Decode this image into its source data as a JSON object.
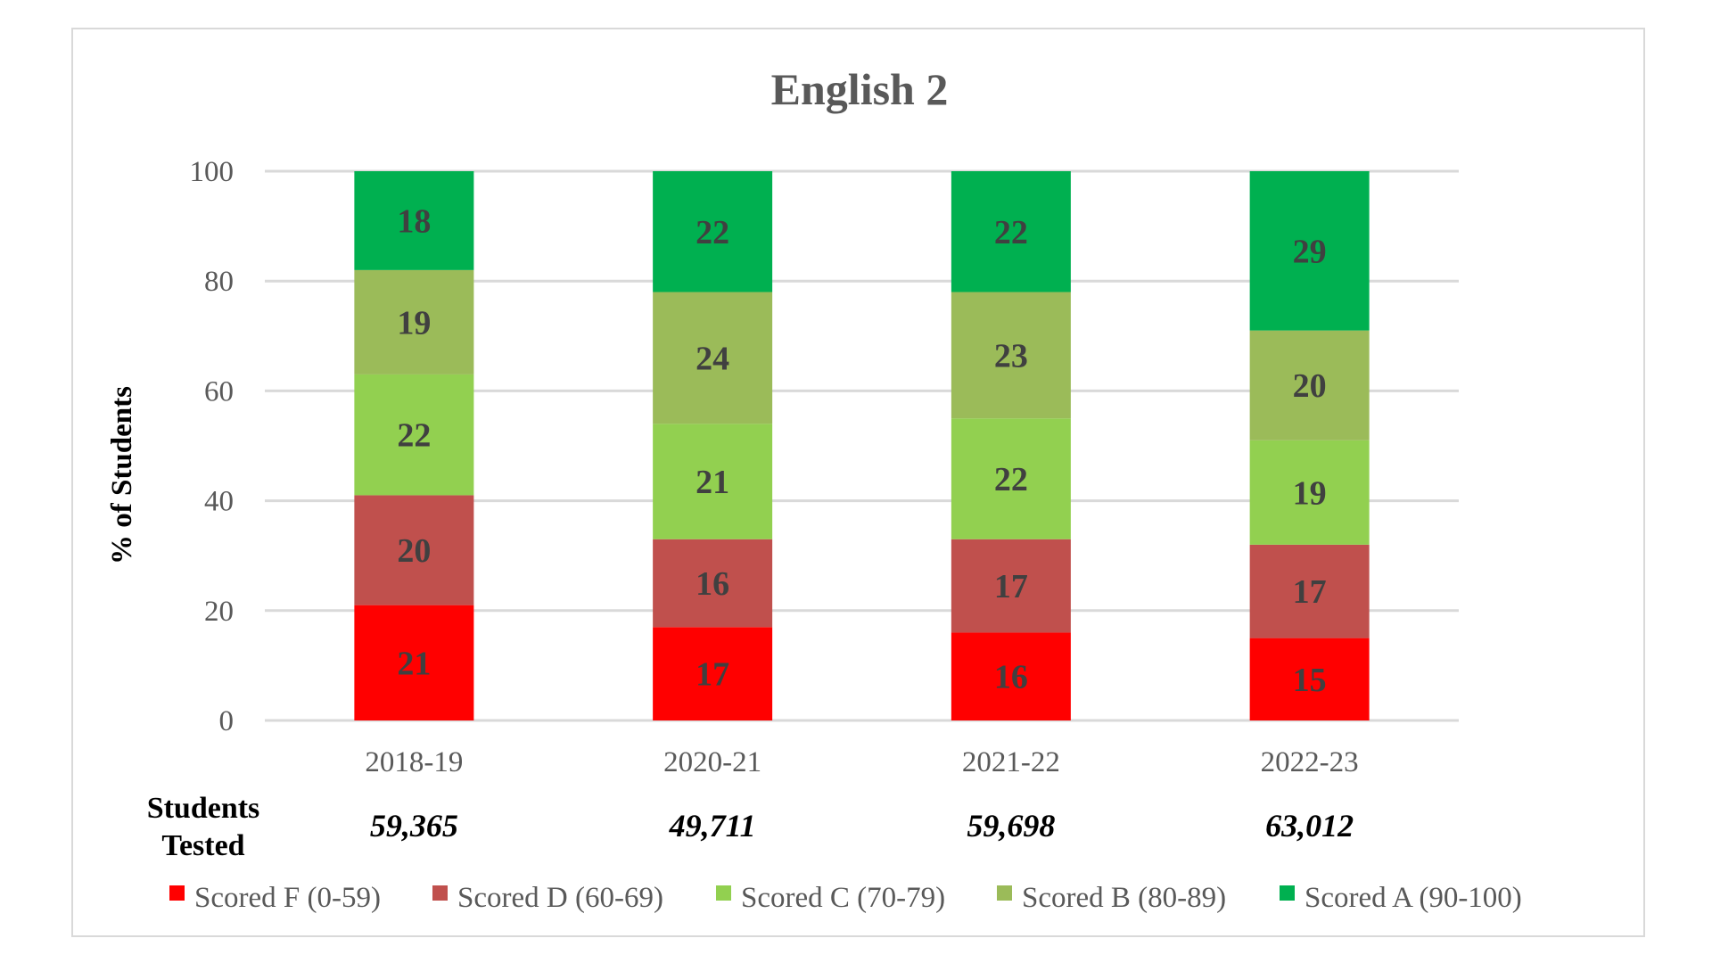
{
  "chart_data": {
    "type": "bar",
    "stacked": true,
    "title": "English 2",
    "ylabel": "% of Students",
    "xlabel": "",
    "ylim": [
      0,
      100
    ],
    "yticks": [
      0,
      20,
      40,
      60,
      80,
      100
    ],
    "grid": true,
    "legend_position": "bottom",
    "categories": [
      "2018-19",
      "2020-21",
      "2021-22",
      "2022-23"
    ],
    "series": [
      {
        "name": "Scored F (0-59)",
        "color": "#ff0000",
        "values": [
          21,
          17,
          16,
          15
        ]
      },
      {
        "name": "Scored D (60-69)",
        "color": "#c0504d",
        "values": [
          20,
          16,
          17,
          17
        ]
      },
      {
        "name": "Scored C (70-79)",
        "color": "#92d050",
        "values": [
          22,
          21,
          22,
          19
        ]
      },
      {
        "name": "Scored B (80-89)",
        "color": "#9bbb59",
        "values": [
          19,
          24,
          23,
          20
        ]
      },
      {
        "name": "Scored A (90-100)",
        "color": "#00b050",
        "values": [
          18,
          22,
          22,
          29
        ]
      }
    ],
    "students_tested_label": [
      "Students",
      "Tested"
    ],
    "students_tested": [
      "59,365",
      "49,711",
      "59,698",
      "63,012"
    ]
  }
}
